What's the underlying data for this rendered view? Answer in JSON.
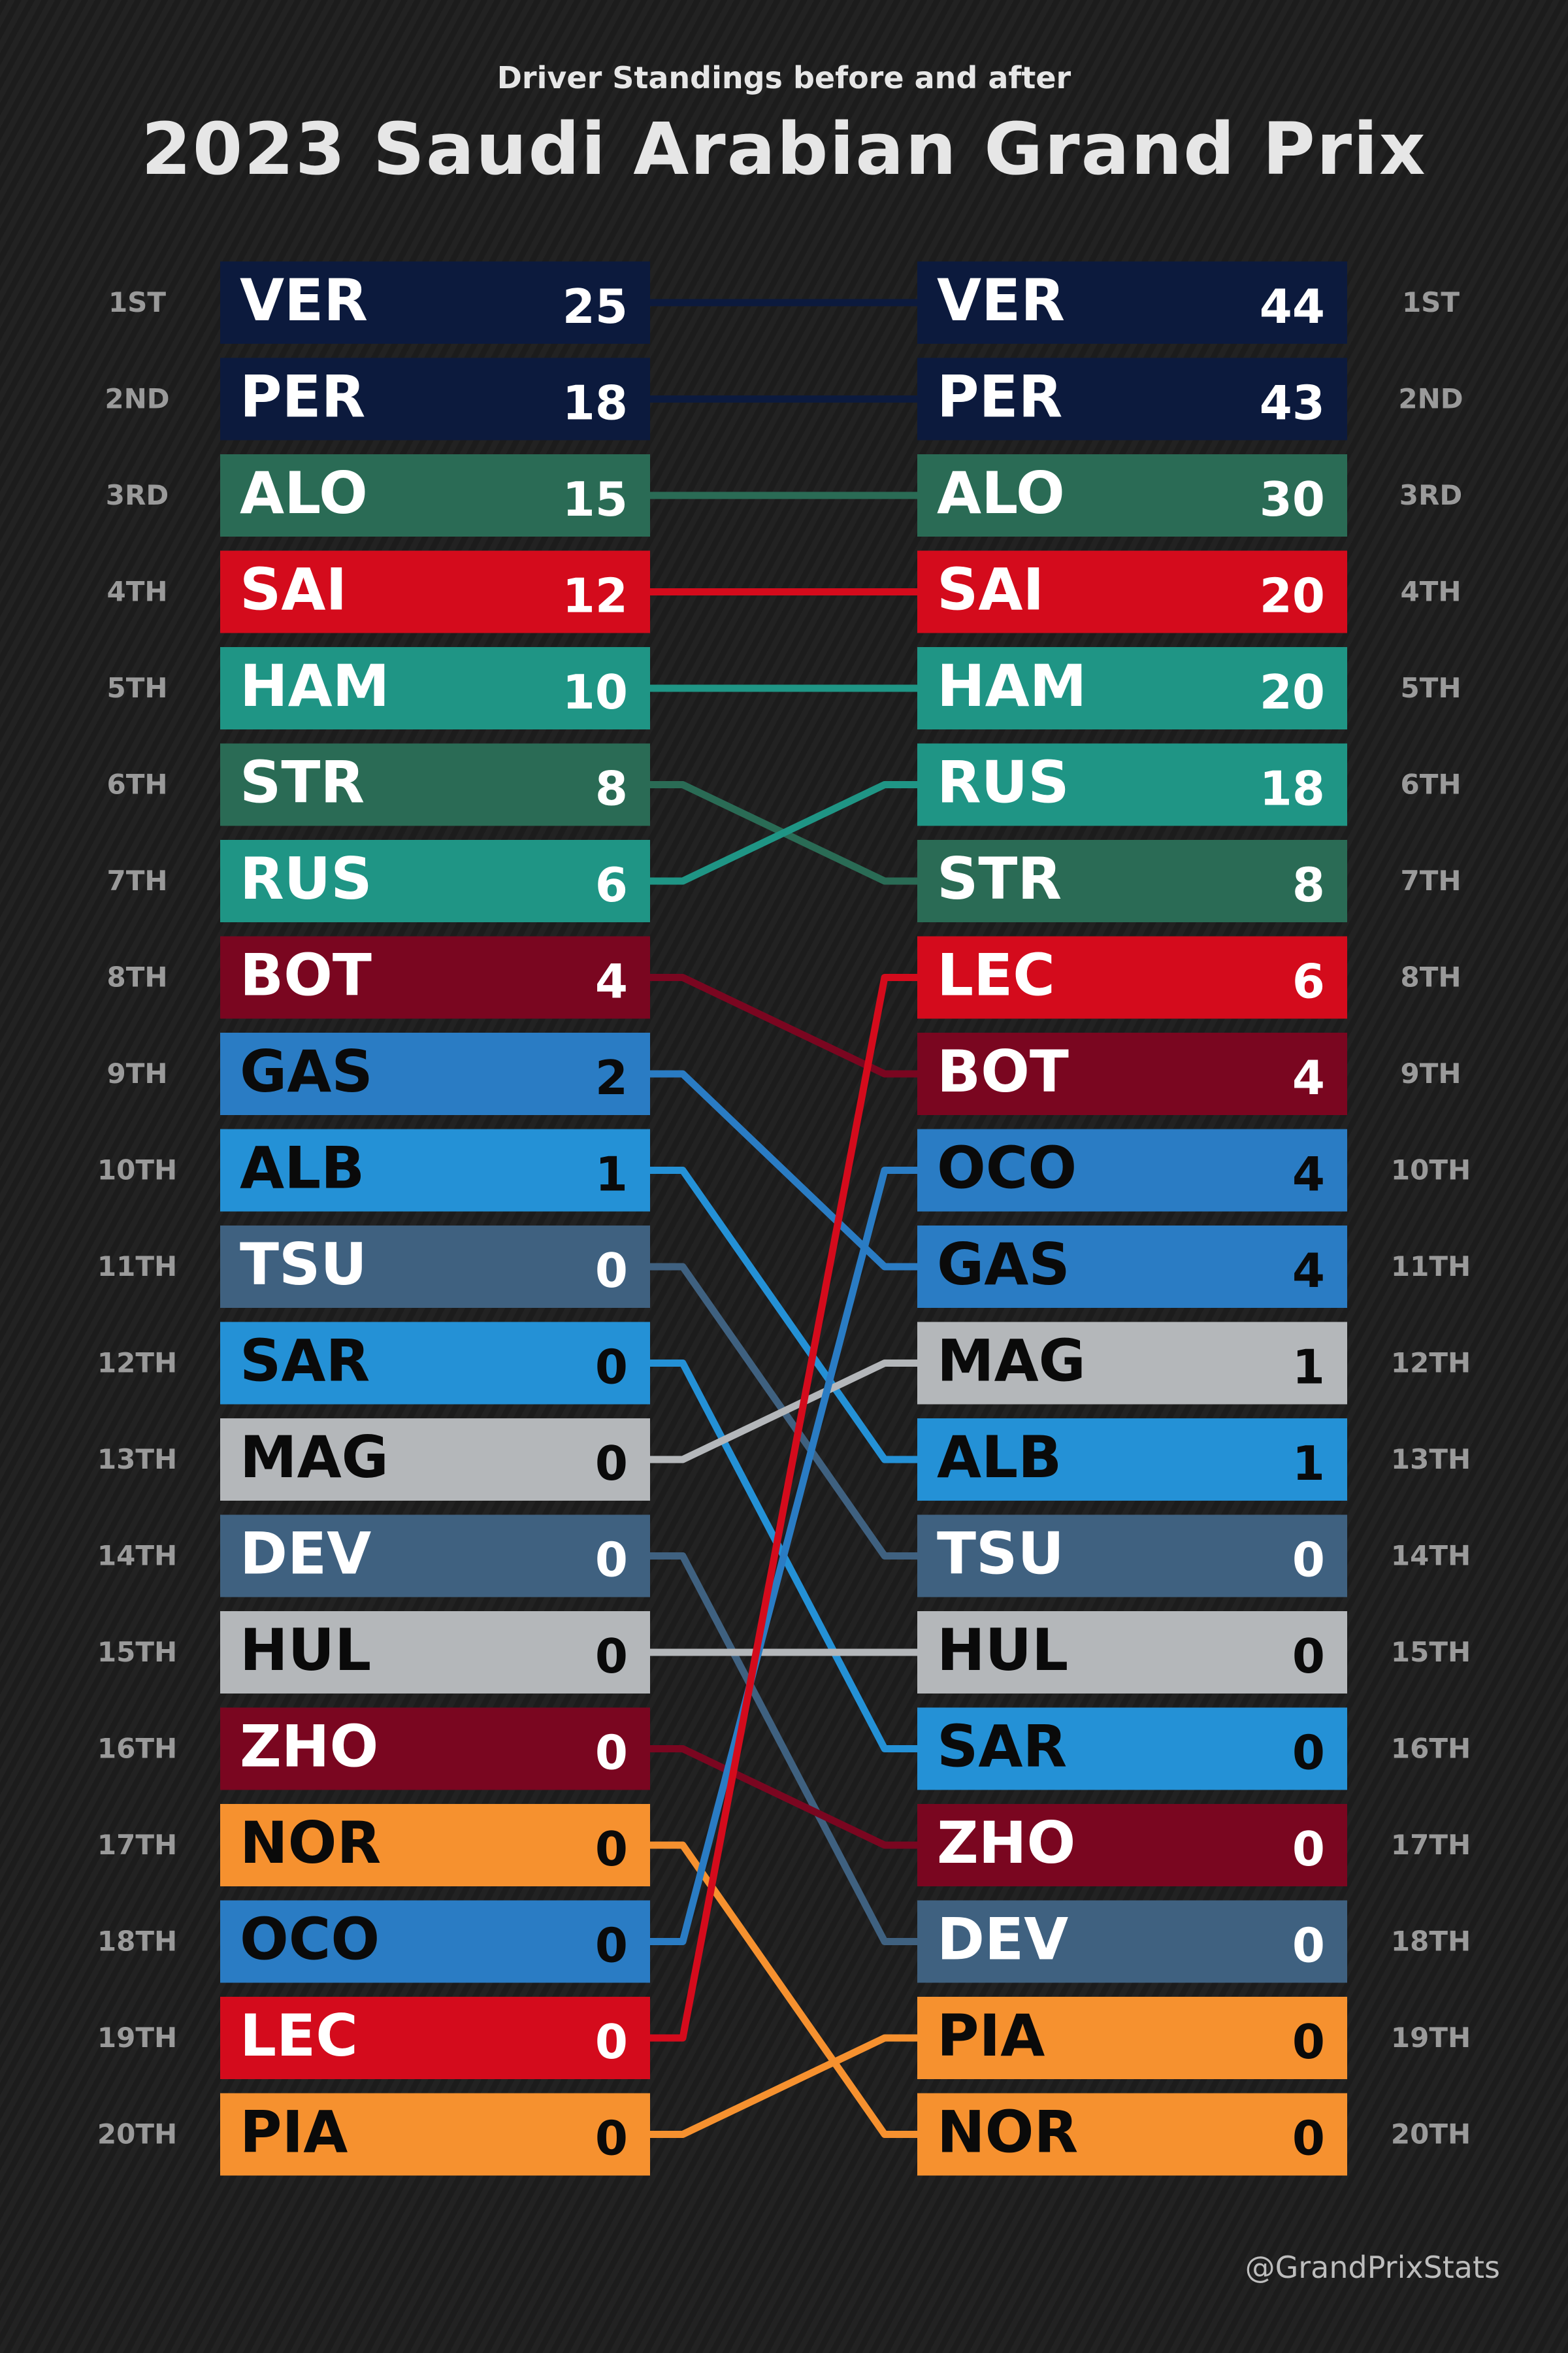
{
  "subtitle": "Driver Standings before and after",
  "title": "2023 Saudi Arabian Grand Prix",
  "credit": "@GrandPrixStats",
  "chart_data": {
    "type": "table",
    "position_labels": [
      "1ST",
      "2ND",
      "3RD",
      "4TH",
      "5TH",
      "6TH",
      "7TH",
      "8TH",
      "9TH",
      "10TH",
      "11TH",
      "12TH",
      "13TH",
      "14TH",
      "15TH",
      "16TH",
      "17TH",
      "18TH",
      "19TH",
      "20TH"
    ],
    "before": [
      {
        "code": "VER",
        "points": "25"
      },
      {
        "code": "PER",
        "points": "18"
      },
      {
        "code": "ALO",
        "points": "15"
      },
      {
        "code": "SAI",
        "points": "12"
      },
      {
        "code": "HAM",
        "points": "10"
      },
      {
        "code": "STR",
        "points": "8"
      },
      {
        "code": "RUS",
        "points": "6"
      },
      {
        "code": "BOT",
        "points": "4"
      },
      {
        "code": "GAS",
        "points": "2"
      },
      {
        "code": "ALB",
        "points": "1"
      },
      {
        "code": "TSU",
        "points": "0"
      },
      {
        "code": "SAR",
        "points": "0"
      },
      {
        "code": "MAG",
        "points": "0"
      },
      {
        "code": "DEV",
        "points": "0"
      },
      {
        "code": "HUL",
        "points": "0"
      },
      {
        "code": "ZHO",
        "points": "0"
      },
      {
        "code": "NOR",
        "points": "0"
      },
      {
        "code": "OCO",
        "points": "0"
      },
      {
        "code": "LEC",
        "points": "0"
      },
      {
        "code": "PIA",
        "points": "0"
      }
    ],
    "after": [
      {
        "code": "VER",
        "points": "44"
      },
      {
        "code": "PER",
        "points": "43"
      },
      {
        "code": "ALO",
        "points": "30"
      },
      {
        "code": "SAI",
        "points": "20"
      },
      {
        "code": "HAM",
        "points": "20"
      },
      {
        "code": "RUS",
        "points": "18"
      },
      {
        "code": "STR",
        "points": "8"
      },
      {
        "code": "LEC",
        "points": "6"
      },
      {
        "code": "BOT",
        "points": "4"
      },
      {
        "code": "OCO",
        "points": "4"
      },
      {
        "code": "GAS",
        "points": "4"
      },
      {
        "code": "MAG",
        "points": "1"
      },
      {
        "code": "ALB",
        "points": "1"
      },
      {
        "code": "TSU",
        "points": "0"
      },
      {
        "code": "HUL",
        "points": "0"
      },
      {
        "code": "SAR",
        "points": "0"
      },
      {
        "code": "ZHO",
        "points": "0"
      },
      {
        "code": "DEV",
        "points": "0"
      },
      {
        "code": "PIA",
        "points": "0"
      },
      {
        "code": "NOR",
        "points": "0"
      }
    ],
    "team_colors": {
      "VER": {
        "bg": "#0c1a3d",
        "text": "#ffffff"
      },
      "PER": {
        "bg": "#0c1a3d",
        "text": "#ffffff"
      },
      "ALO": {
        "bg": "#2a6b55",
        "text": "#ffffff"
      },
      "STR": {
        "bg": "#2a6b55",
        "text": "#ffffff"
      },
      "SAI": {
        "bg": "#d40b1c",
        "text": "#ffffff"
      },
      "LEC": {
        "bg": "#d40b1c",
        "text": "#ffffff"
      },
      "HAM": {
        "bg": "#1f9585",
        "text": "#ffffff"
      },
      "RUS": {
        "bg": "#1f9585",
        "text": "#ffffff"
      },
      "BOT": {
        "bg": "#7a0620",
        "text": "#ffffff"
      },
      "ZHO": {
        "bg": "#7a0620",
        "text": "#ffffff"
      },
      "GAS": {
        "bg": "#2a7cc4",
        "text": "#0a0a0a"
      },
      "OCO": {
        "bg": "#2a7cc4",
        "text": "#0a0a0a"
      },
      "ALB": {
        "bg": "#2491d6",
        "text": "#0a0a0a"
      },
      "SAR": {
        "bg": "#2491d6",
        "text": "#0a0a0a"
      },
      "TSU": {
        "bg": "#3f6180",
        "text": "#ffffff"
      },
      "DEV": {
        "bg": "#3f6180",
        "text": "#ffffff"
      },
      "MAG": {
        "bg": "#b4b7ba",
        "text": "#0a0a0a"
      },
      "HUL": {
        "bg": "#b4b7ba",
        "text": "#0a0a0a"
      },
      "NOR": {
        "bg": "#f6912f",
        "text": "#0a0a0a"
      },
      "PIA": {
        "bg": "#f6912f",
        "text": "#0a0a0a"
      }
    }
  }
}
